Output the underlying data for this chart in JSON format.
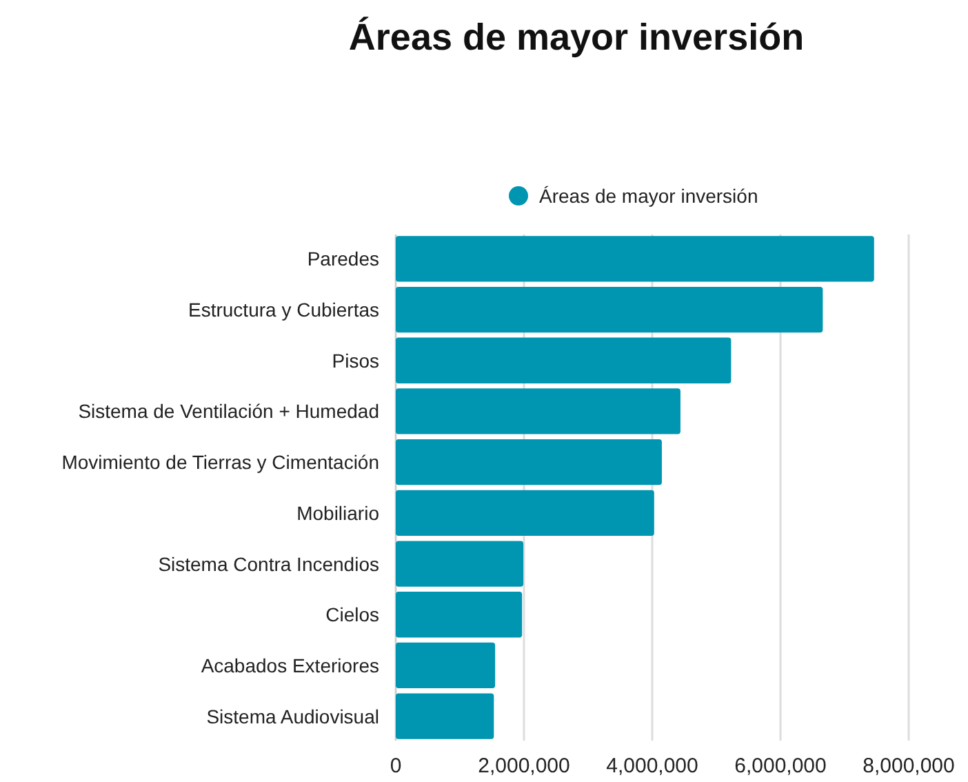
{
  "chart_data": {
    "type": "bar",
    "orientation": "horizontal",
    "title": "Áreas de mayor inversión",
    "categories": [
      "Paredes",
      "Estructura y Cubiertas",
      "Pisos",
      "Sistema de Ventilación + Humedad",
      "Movimiento de Tierras y Cimentación",
      "Mobiliario",
      "Sistema Contra Incendios",
      "Cielos",
      "Acabados Exteriores",
      "Sistema Audiovisual"
    ],
    "series": [
      {
        "name": "Áreas de mayor inversión",
        "color": "#0095b0",
        "values": [
          7460000,
          6660000,
          5230000,
          4440000,
          4150000,
          4030000,
          1990000,
          1970000,
          1550000,
          1530000
        ]
      }
    ],
    "xlim": [
      0,
      8000000
    ],
    "xticks": [
      0,
      {
        "value": 2000000,
        "label": "2,000,000"
      },
      {
        "value": 4000000,
        "label": "4,000,000"
      },
      {
        "value": 6000000,
        "label": "6,000,000"
      },
      {
        "value": 8000000,
        "label": "8,000,000"
      }
    ],
    "grid": "x",
    "legend": "top"
  }
}
